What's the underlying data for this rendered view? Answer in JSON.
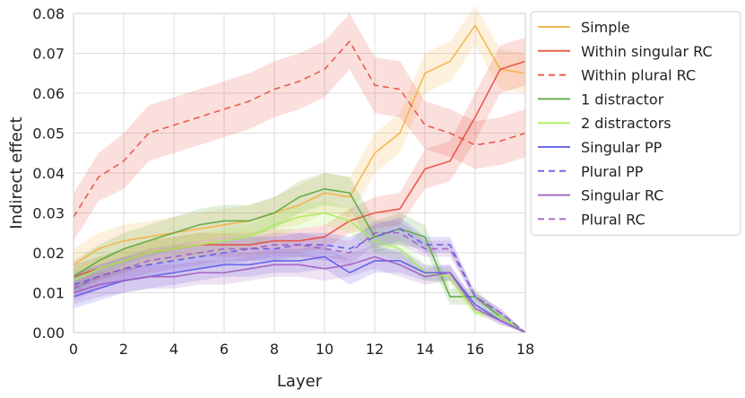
{
  "chart_data": {
    "type": "line",
    "title": "",
    "xlabel": "Layer",
    "ylabel": "Indirect effect",
    "xlim": [
      0,
      18
    ],
    "ylim": [
      0,
      0.08
    ],
    "xticks": [
      "0",
      "2",
      "4",
      "6",
      "8",
      "10",
      "12",
      "14",
      "16",
      "18"
    ],
    "yticks": [
      "0.00",
      "0.01",
      "0.02",
      "0.03",
      "0.04",
      "0.05",
      "0.06",
      "0.07",
      "0.08"
    ],
    "grid": true,
    "reference_line": 0,
    "legend_position": "outside-right",
    "x": [
      0,
      1,
      2,
      3,
      4,
      5,
      6,
      7,
      8,
      9,
      10,
      11,
      12,
      13,
      14,
      15,
      16,
      17,
      18
    ],
    "series": [
      {
        "name": "Simple",
        "color": "#f5b041",
        "dash": "solid",
        "values": [
          0.017,
          0.021,
          0.023,
          0.024,
          0.025,
          0.026,
          0.027,
          0.028,
          0.03,
          0.032,
          0.035,
          0.034,
          0.045,
          0.05,
          0.065,
          0.068,
          0.077,
          0.066,
          0.065
        ],
        "band": [
          0.004,
          0.004,
          0.004,
          0.004,
          0.004,
          0.004,
          0.004,
          0.004,
          0.004,
          0.005,
          0.005,
          0.005,
          0.005,
          0.005,
          0.005,
          0.005,
          0.005,
          0.005,
          0.005
        ]
      },
      {
        "name": "Within singular RC",
        "color": "#e74c3c",
        "dash": "solid",
        "values": [
          0.014,
          0.016,
          0.018,
          0.02,
          0.021,
          0.022,
          0.022,
          0.022,
          0.023,
          0.023,
          0.024,
          0.028,
          0.03,
          0.031,
          0.041,
          0.043,
          0.054,
          0.066,
          0.068
        ],
        "band": [
          0.003,
          0.003,
          0.003,
          0.003,
          0.003,
          0.003,
          0.003,
          0.003,
          0.003,
          0.003,
          0.003,
          0.003,
          0.004,
          0.004,
          0.005,
          0.005,
          0.006,
          0.006,
          0.006
        ]
      },
      {
        "name": "Within plural RC",
        "color": "#e74c3c",
        "dash": "dashed",
        "values": [
          0.029,
          0.039,
          0.043,
          0.05,
          0.052,
          0.054,
          0.056,
          0.058,
          0.061,
          0.063,
          0.066,
          0.073,
          0.062,
          0.061,
          0.052,
          0.05,
          0.047,
          0.048,
          0.05
        ],
        "band": [
          0.006,
          0.006,
          0.007,
          0.007,
          0.007,
          0.007,
          0.007,
          0.007,
          0.007,
          0.007,
          0.007,
          0.007,
          0.007,
          0.007,
          0.006,
          0.006,
          0.006,
          0.006,
          0.006
        ]
      },
      {
        "name": "1 distractor",
        "color": "#5aa63d",
        "dash": "solid",
        "values": [
          0.014,
          0.018,
          0.021,
          0.023,
          0.025,
          0.027,
          0.028,
          0.028,
          0.03,
          0.034,
          0.036,
          0.035,
          0.024,
          0.026,
          0.024,
          0.009,
          0.009,
          0.004,
          0.0
        ],
        "band": [
          0.004,
          0.004,
          0.004,
          0.004,
          0.004,
          0.004,
          0.004,
          0.004,
          0.004,
          0.004,
          0.004,
          0.004,
          0.004,
          0.004,
          0.003,
          0.002,
          0.002,
          0.001,
          0.0
        ]
      },
      {
        "name": "2 distractors",
        "color": "#a6ee55",
        "dash": "solid",
        "values": [
          0.013,
          0.016,
          0.018,
          0.02,
          0.021,
          0.022,
          0.023,
          0.024,
          0.027,
          0.029,
          0.03,
          0.028,
          0.023,
          0.021,
          0.015,
          0.014,
          0.005,
          0.004,
          0.0
        ],
        "band": [
          0.003,
          0.003,
          0.003,
          0.003,
          0.003,
          0.003,
          0.003,
          0.003,
          0.003,
          0.003,
          0.003,
          0.003,
          0.003,
          0.003,
          0.002,
          0.002,
          0.001,
          0.001,
          0.0
        ]
      },
      {
        "name": "Singular PP",
        "color": "#5b5bea",
        "dash": "solid",
        "values": [
          0.009,
          0.011,
          0.013,
          0.014,
          0.015,
          0.016,
          0.017,
          0.017,
          0.018,
          0.018,
          0.019,
          0.015,
          0.018,
          0.018,
          0.015,
          0.015,
          0.007,
          0.003,
          0.0
        ],
        "band": [
          0.003,
          0.003,
          0.003,
          0.003,
          0.003,
          0.003,
          0.003,
          0.003,
          0.003,
          0.003,
          0.003,
          0.003,
          0.003,
          0.003,
          0.002,
          0.002,
          0.001,
          0.001,
          0.0
        ]
      },
      {
        "name": "Plural PP",
        "color": "#5b5bea",
        "dash": "dashed",
        "values": [
          0.012,
          0.014,
          0.016,
          0.017,
          0.018,
          0.019,
          0.02,
          0.021,
          0.021,
          0.022,
          0.022,
          0.021,
          0.024,
          0.026,
          0.022,
          0.022,
          0.009,
          0.005,
          0.0
        ],
        "band": [
          0.003,
          0.003,
          0.003,
          0.003,
          0.003,
          0.003,
          0.003,
          0.003,
          0.003,
          0.003,
          0.003,
          0.003,
          0.003,
          0.003,
          0.002,
          0.002,
          0.001,
          0.001,
          0.0
        ]
      },
      {
        "name": "Singular RC",
        "color": "#a05cbf",
        "dash": "solid",
        "values": [
          0.01,
          0.012,
          0.013,
          0.014,
          0.014,
          0.015,
          0.015,
          0.016,
          0.017,
          0.017,
          0.016,
          0.017,
          0.019,
          0.017,
          0.014,
          0.015,
          0.006,
          0.003,
          0.0
        ],
        "band": [
          0.003,
          0.003,
          0.003,
          0.003,
          0.003,
          0.003,
          0.003,
          0.003,
          0.003,
          0.003,
          0.003,
          0.003,
          0.003,
          0.003,
          0.002,
          0.002,
          0.001,
          0.001,
          0.0
        ]
      },
      {
        "name": "Plural RC",
        "color": "#a05cbf",
        "dash": "dashed",
        "values": [
          0.011,
          0.014,
          0.016,
          0.018,
          0.019,
          0.02,
          0.021,
          0.021,
          0.022,
          0.022,
          0.021,
          0.02,
          0.025,
          0.025,
          0.021,
          0.021,
          0.009,
          0.005,
          0.0
        ],
        "band": [
          0.003,
          0.003,
          0.003,
          0.003,
          0.003,
          0.003,
          0.003,
          0.003,
          0.003,
          0.003,
          0.003,
          0.003,
          0.003,
          0.003,
          0.002,
          0.002,
          0.001,
          0.001,
          0.0
        ]
      }
    ]
  }
}
